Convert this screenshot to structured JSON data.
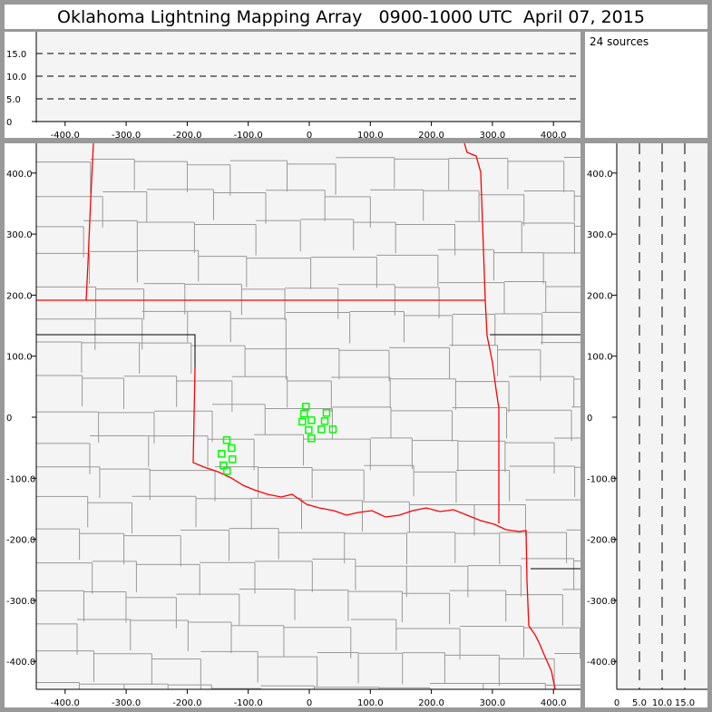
{
  "title": "Oklahoma Lightning Mapping Array   0900-1000 UTC  April 07, 2015",
  "info": {
    "sources_label": "24 sources"
  },
  "colors": {
    "background": "#999999",
    "plot_bg": "#f4f4f4",
    "source_marker": "#00ff00",
    "state_border": "#ff0000",
    "county_line": "#999999"
  },
  "chart_data": [
    {
      "type": "scatter",
      "panel": "altitude-vs-east-west",
      "xlim": [
        -450,
        450
      ],
      "ylim": [
        0,
        20
      ],
      "x_ticks": [
        "-400.0",
        "-300.0",
        "-200.0",
        "-100.0",
        "0",
        "100.0",
        "200.0",
        "300.0",
        "400.0"
      ],
      "y_ticks": [
        "0",
        "5.0",
        "10.0",
        "15.0"
      ],
      "grid": "dashed at 5, 10, 15",
      "points": []
    },
    {
      "type": "scatter",
      "panel": "plan-view-map",
      "xlim": [
        -450,
        440
      ],
      "ylim": [
        -445,
        450
      ],
      "x_ticks": [
        "-400.0",
        "-300.0",
        "-200.0",
        "-100.0",
        "0",
        "100.0",
        "200.0",
        "300.0",
        "400.0"
      ],
      "y_ticks": [
        "400.0",
        "300.0",
        "200.0",
        "100.0",
        "0",
        "-100.0",
        "-200.0",
        "-300.0",
        "-400.0"
      ],
      "marker": "hollow-square",
      "points": [
        {
          "x": -5.5,
          "y": 17.4
        },
        {
          "x": -8.5,
          "y": 5.9
        },
        {
          "x": 28.2,
          "y": 7.0
        },
        {
          "x": -11.4,
          "y": -7.4
        },
        {
          "x": 3.4,
          "y": -4.9
        },
        {
          "x": 25.3,
          "y": -6.4
        },
        {
          "x": -1.0,
          "y": -21.2
        },
        {
          "x": 19.8,
          "y": -19.8
        },
        {
          "x": 38.6,
          "y": -19.8
        },
        {
          "x": 3.4,
          "y": -34.6
        },
        {
          "x": -135.2,
          "y": -37.6
        },
        {
          "x": -127.3,
          "y": -50.5
        },
        {
          "x": -143.7,
          "y": -59.9
        },
        {
          "x": -125.9,
          "y": -68.8
        },
        {
          "x": -140.7,
          "y": -78.8
        },
        {
          "x": -134.8,
          "y": -88.1
        }
      ]
    },
    {
      "type": "scatter",
      "panel": "north-south-vs-altitude",
      "xlim": [
        0,
        20
      ],
      "ylim": [
        -445,
        450
      ],
      "x_ticks": [
        "0",
        "5.0",
        "10.0",
        "15.0"
      ],
      "y_ticks": [
        "400.0",
        "300.0",
        "200.0",
        "100.0",
        "0",
        "-100.0",
        "-200.0",
        "-300.0",
        "-400.0"
      ],
      "grid": "dashed at 5, 10, 15",
      "points": []
    }
  ]
}
